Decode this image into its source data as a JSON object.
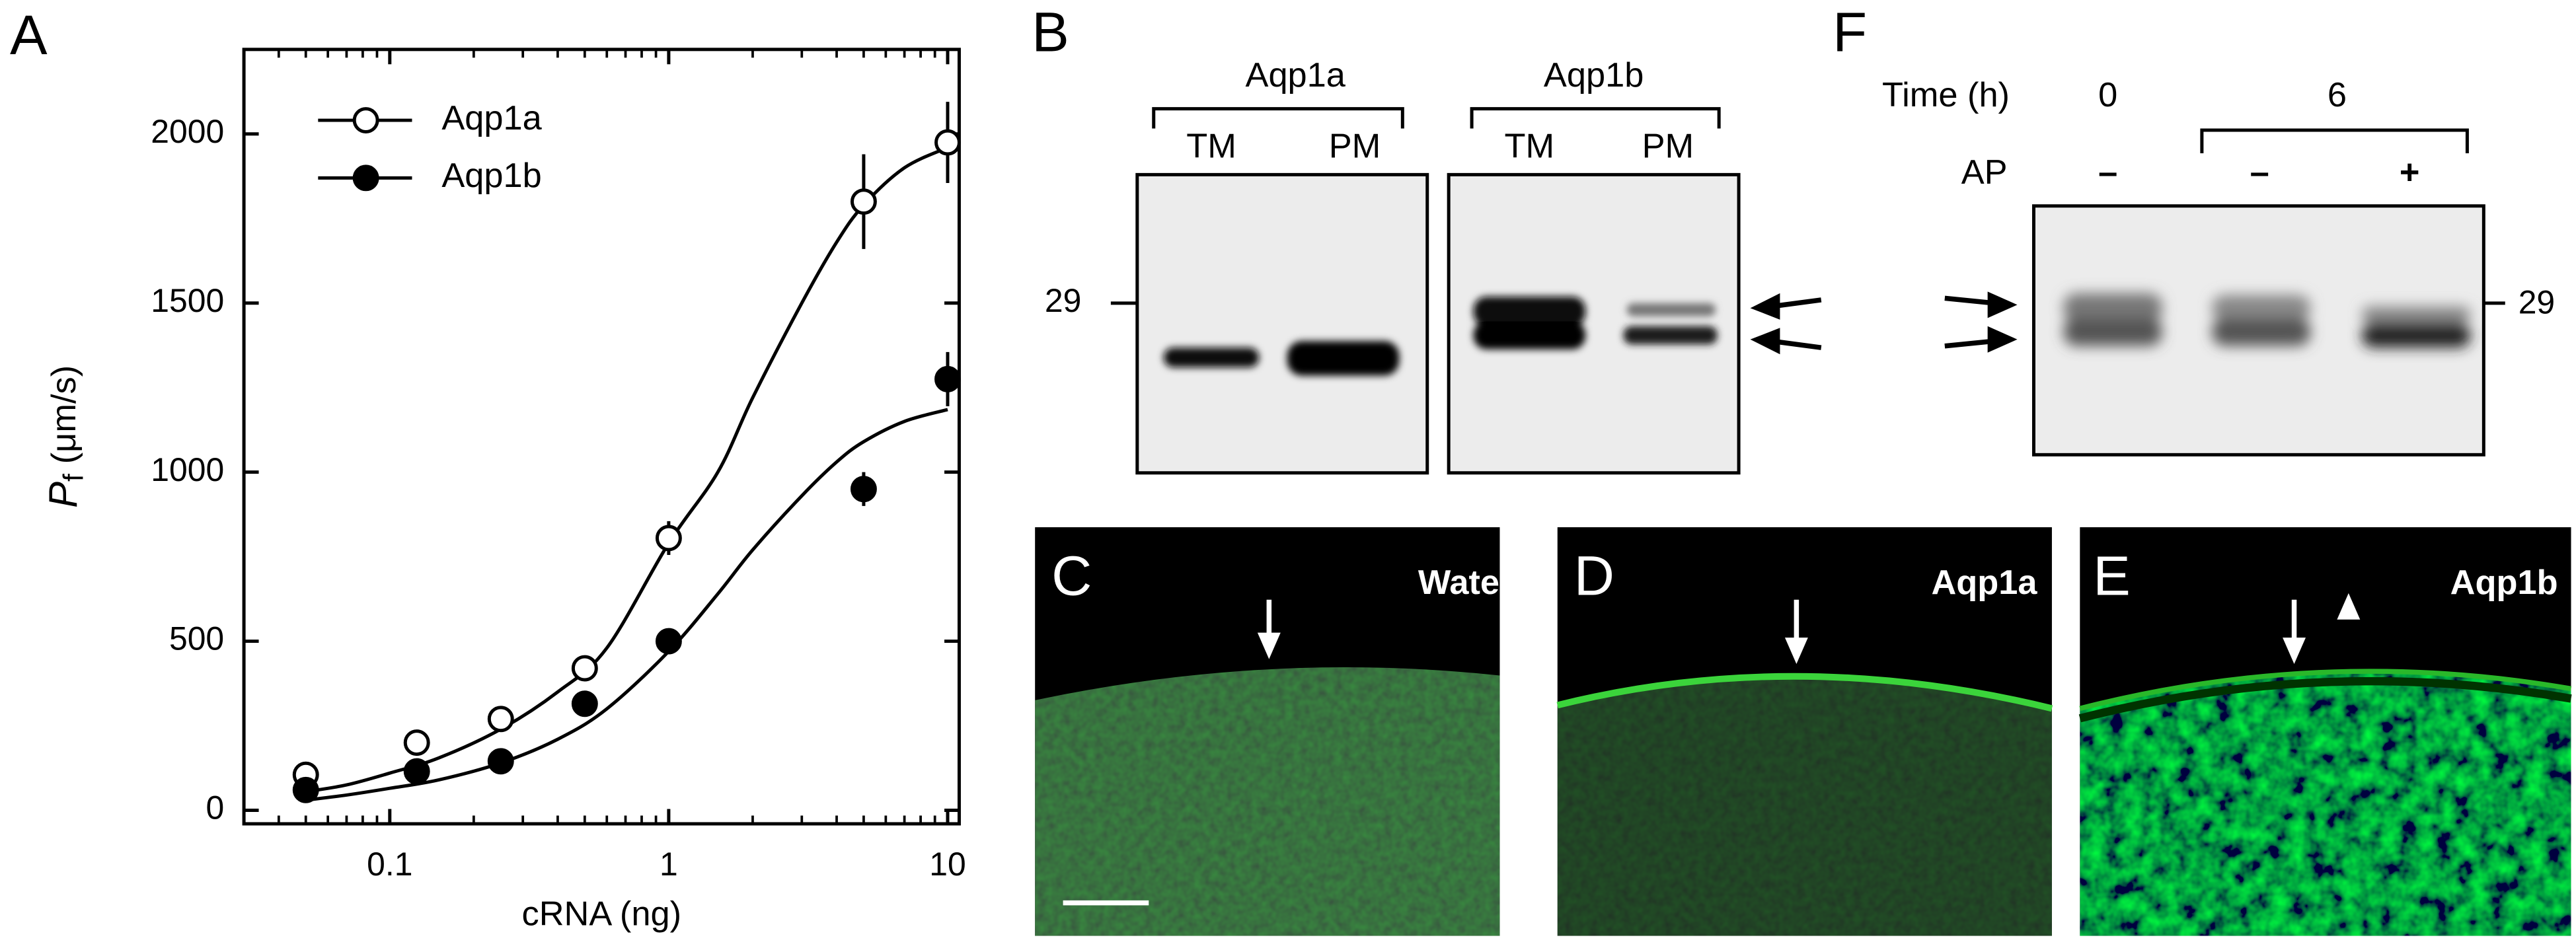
{
  "chart_data": {
    "type": "line",
    "panel": "A",
    "xlabel": "cRNA (ng)",
    "ylabel": "P",
    "ylabel_sub": "f",
    "ylabel_unit": "(μm/s)",
    "xscale": "log",
    "xlim": [
      0.03,
      11
    ],
    "ylim": [
      -40,
      2250
    ],
    "xticks": [
      0.1,
      1,
      10
    ],
    "xminorticks": [
      0.04,
      0.05,
      0.06,
      0.07,
      0.08,
      0.09,
      0.2,
      0.3,
      0.4,
      0.5,
      0.6,
      0.7,
      0.8,
      0.9,
      2,
      3,
      4,
      5,
      6,
      7,
      8,
      9
    ],
    "yticks": [
      0,
      500,
      1000,
      1500,
      2000
    ],
    "legend": "upper left",
    "series": [
      {
        "name": "Aqp1a",
        "color": "#000000",
        "marker": "open",
        "x": [
          0.05,
          0.125,
          0.25,
          0.5,
          1,
          5,
          10
        ],
        "values": [
          105,
          200,
          270,
          420,
          805,
          1800,
          1975
        ],
        "errors": [
          10,
          10,
          10,
          15,
          50,
          140,
          120
        ],
        "fit": {
          "x": [
            0.05,
            0.07,
            0.1,
            0.15,
            0.25,
            0.4,
            0.6,
            1,
            1.5,
            2,
            3,
            4,
            5,
            7,
            10
          ],
          "values": [
            55,
            75,
            110,
            155,
            240,
            350,
            480,
            790,
            1000,
            1220,
            1500,
            1680,
            1790,
            1900,
            1960
          ]
        }
      },
      {
        "name": "Aqp1b",
        "color": "#000000",
        "marker": "filled",
        "x": [
          0.05,
          0.125,
          0.25,
          0.5,
          1,
          5,
          10
        ],
        "values": [
          60,
          115,
          145,
          315,
          500,
          950,
          1275
        ],
        "errors": [
          8,
          10,
          10,
          12,
          20,
          50,
          80
        ],
        "fit": {
          "x": [
            0.05,
            0.07,
            0.1,
            0.15,
            0.25,
            0.4,
            0.6,
            1,
            1.5,
            2,
            3,
            4,
            5,
            7,
            10
          ],
          "values": [
            30,
            45,
            65,
            90,
            140,
            210,
            300,
            470,
            640,
            770,
            930,
            1030,
            1090,
            1150,
            1185
          ]
        }
      }
    ]
  },
  "panel_b": {
    "label": "B",
    "marker": "29",
    "groups": [
      {
        "name": "Aqp1a",
        "lanes": [
          "TM",
          "PM"
        ]
      },
      {
        "name": "Aqp1b",
        "lanes": [
          "TM",
          "PM"
        ]
      }
    ]
  },
  "panel_f": {
    "label": "F",
    "marker": "29",
    "rows": [
      {
        "label": "Time (h)",
        "values": [
          "0",
          "6"
        ]
      },
      {
        "label": "AP",
        "values": [
          "–",
          "–",
          "+"
        ]
      }
    ]
  },
  "image_panels": [
    {
      "label": "C",
      "title": "Water"
    },
    {
      "label": "D",
      "title": "Aqp1a"
    },
    {
      "label": "E",
      "title": "Aqp1b"
    }
  ]
}
